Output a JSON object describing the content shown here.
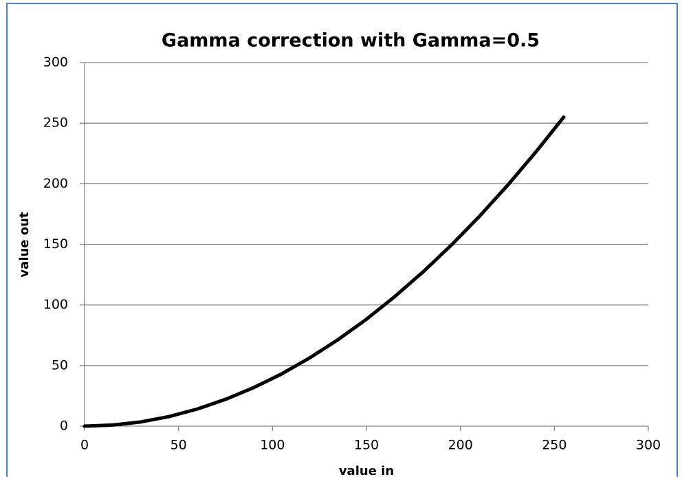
{
  "chart_data": {
    "type": "line",
    "title": "Gamma correction with Gamma=0.5",
    "x_label": "value in",
    "y_label": "value out",
    "series": [
      {
        "color": "#000000",
        "x": [
          0,
          15,
          30,
          45,
          60,
          75,
          90,
          105,
          120,
          135,
          150,
          165,
          180,
          195,
          210,
          225,
          240,
          255
        ],
        "values": [
          0,
          0.9,
          3.5,
          7.9,
          14.1,
          22.1,
          31.8,
          43.2,
          56.5,
          71.5,
          88.2,
          106.8,
          127.1,
          149.1,
          172.9,
          198.5,
          225.9,
          255
        ]
      }
    ],
    "xlim": [
      0,
      300
    ],
    "xticks": [
      0,
      50,
      100,
      150,
      200,
      250,
      300
    ],
    "ylim": [
      0,
      300
    ],
    "yticks": [
      0,
      50,
      100,
      150,
      200,
      250,
      300
    ],
    "grid": true
  }
}
